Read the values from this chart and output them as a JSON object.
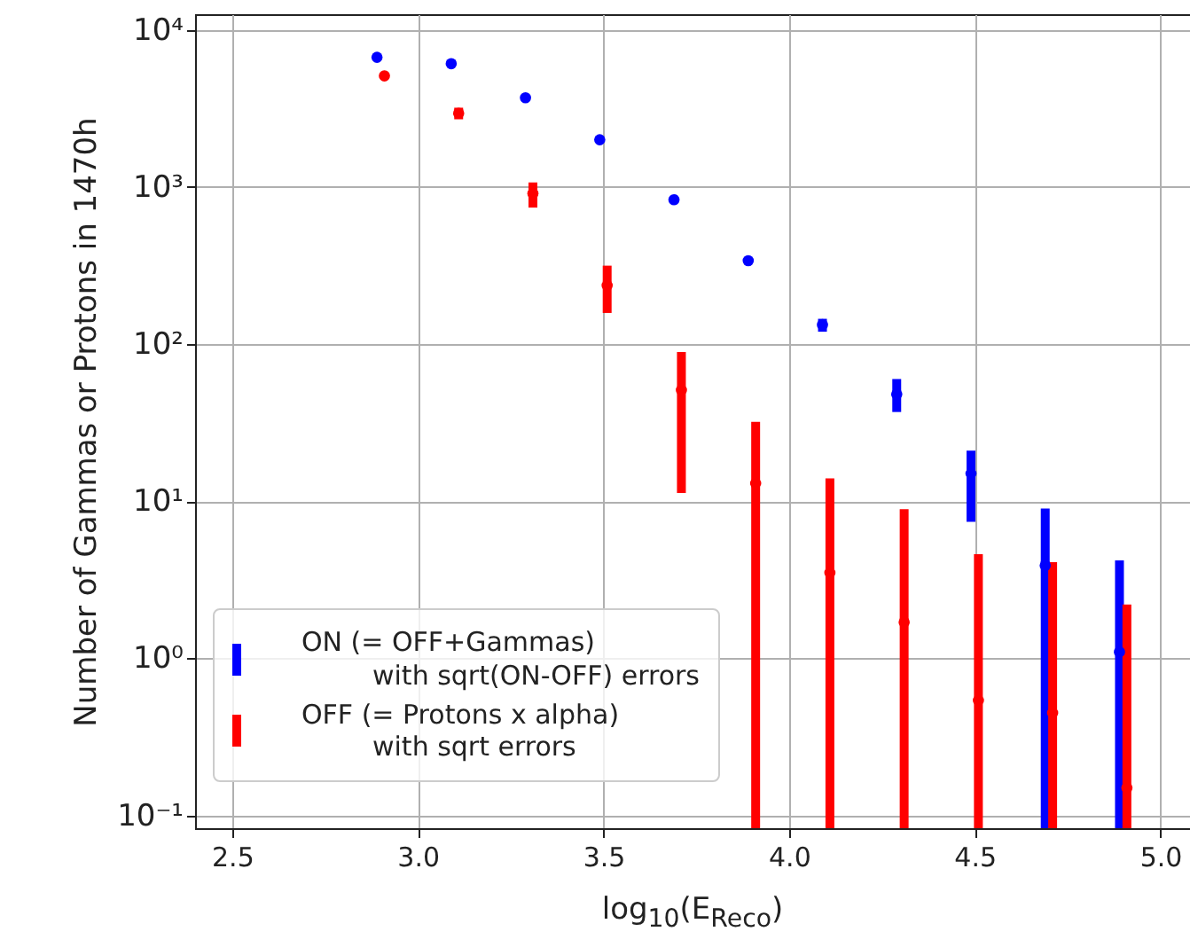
{
  "chart_data": {
    "type": "scatter",
    "xlabel": "log$_{10}$(E$_{Reco}$)",
    "ylabel": "Number of Gammas or Protons in 1470h",
    "x": [
      2.89,
      3.09,
      3.29,
      3.49,
      3.69,
      3.89,
      4.09,
      4.29,
      4.49,
      4.69,
      4.89
    ],
    "series": [
      {
        "name": "ON (= OFF+Gammas)\nwith sqrt(ON-OFF) errors",
        "color": "#0000ff",
        "values": [
          6700,
          6100,
          3700,
          2000,
          830,
          340,
          133,
          48,
          15,
          3.9,
          1.1
        ],
        "errors": [
          null,
          null,
          null,
          null,
          null,
          null,
          [
            120,
            145
          ],
          [
            37,
            60
          ],
          [
            7.4,
            21
          ],
          [
            0.083,
            9
          ],
          [
            0.083,
            4.2
          ]
        ]
      },
      {
        "name": "OFF (= Protons x alpha)\nwith sqrt errors",
        "color": "#ff0000",
        "x": [
          2.91,
          3.11,
          3.31,
          3.51,
          3.71,
          3.91,
          4.11,
          4.31,
          4.51,
          4.71,
          4.91
        ],
        "values": [
          5100,
          2950,
          910,
          236,
          51,
          13,
          3.5,
          1.7,
          0.54,
          0.45,
          0.15
        ],
        "errors": [
          null,
          [
            2700,
            3200
          ],
          [
            740,
            1070
          ],
          [
            158,
            316
          ],
          [
            11.3,
            89
          ],
          [
            0.083,
            32
          ],
          [
            0.083,
            14
          ],
          [
            0.083,
            8.9
          ],
          [
            0.083,
            4.6
          ],
          [
            0.083,
            4.1
          ],
          [
            0.083,
            2.2
          ]
        ]
      }
    ],
    "xlim": [
      2.4,
      5.08
    ],
    "xticks": [
      {
        "value": 2.5,
        "label": "2.5"
      },
      {
        "value": 3,
        "label": "3.0"
      },
      {
        "value": 3.5,
        "label": "3.5"
      },
      {
        "value": 4,
        "label": "4.0"
      },
      {
        "value": 4.5,
        "label": "4.5"
      },
      {
        "value": 5,
        "label": "5.0"
      }
    ],
    "ylim": [
      0.083,
      12600
    ],
    "yticks": [
      {
        "value": 0.1,
        "label": "10⁻¹"
      },
      {
        "value": 1,
        "label": "10⁰"
      },
      {
        "value": 10,
        "label": "10¹"
      },
      {
        "value": 100,
        "label": "10²"
      },
      {
        "value": 1000,
        "label": "10³"
      },
      {
        "value": 10000,
        "label": "10⁴"
      }
    ],
    "log": true,
    "grid": true,
    "legend": "bottom left",
    "marker": "circle"
  }
}
